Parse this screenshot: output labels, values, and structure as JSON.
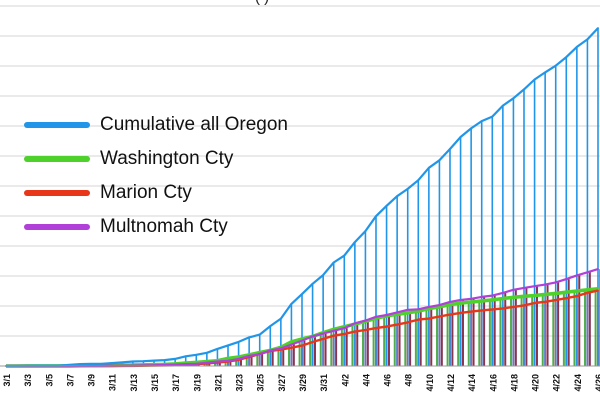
{
  "chart_data": {
    "type": "line",
    "title_fragment": "(  )",
    "x": [
      "3/1",
      "3/2",
      "3/3",
      "3/4",
      "3/5",
      "3/6",
      "3/7",
      "3/8",
      "3/9",
      "3/10",
      "3/11",
      "3/12",
      "3/13",
      "3/14",
      "3/15",
      "3/16",
      "3/17",
      "3/18",
      "3/19",
      "3/20",
      "3/21",
      "3/22",
      "3/23",
      "3/24",
      "3/25",
      "3/26",
      "3/27",
      "3/28",
      "3/29",
      "3/30",
      "3/31",
      "4/1",
      "4/2",
      "4/3",
      "4/4",
      "4/5",
      "4/6",
      "4/7",
      "4/8",
      "4/9",
      "4/10",
      "4/11",
      "4/12",
      "4/13",
      "4/14",
      "4/15",
      "4/16",
      "4/17",
      "4/18",
      "4/19",
      "4/20",
      "4/21",
      "4/22",
      "4/23",
      "4/24",
      "4/25",
      "4/26"
    ],
    "tick_labels": [
      "3/1",
      "3/3",
      "3/5",
      "3/7",
      "3/9",
      "3/11",
      "3/13",
      "3/15",
      "3/17",
      "3/19",
      "3/21",
      "3/23",
      "3/25",
      "3/27",
      "3/29",
      "3/31",
      "4/2",
      "4/4",
      "4/6",
      "4/8",
      "4/10",
      "4/12",
      "4/14",
      "4/16",
      "4/18",
      "4/20",
      "4/22",
      "4/24",
      "4/26"
    ],
    "grid": true,
    "legend_position": "upper-left",
    "series": [
      {
        "name": "Cumulative all Oregon",
        "color": "#2196e8",
        "values": [
          1,
          1,
          2,
          3,
          3,
          3,
          7,
          13,
          14,
          15,
          19,
          24,
          30,
          32,
          36,
          39,
          47,
          65,
          75,
          88,
          114,
          137,
          161,
          191,
          209,
          266,
          316,
          414,
          479,
          548,
          606,
          690,
          736,
          826,
          899,
          999,
          1068,
          1132,
          1181,
          1239,
          1321,
          1371,
          1447,
          1527,
          1584,
          1633,
          1663,
          1736,
          1785,
          1844,
          1910,
          1957,
          2002,
          2059,
          2127,
          2177,
          2253
        ]
      },
      {
        "name": "Washington Cty",
        "color": "#4fd12c",
        "values": [
          0,
          0,
          1,
          1,
          1,
          1,
          1,
          2,
          3,
          3,
          4,
          5,
          6,
          7,
          9,
          11,
          14,
          20,
          24,
          29,
          35,
          51,
          60,
          74,
          90,
          104,
          124,
          161,
          180,
          197,
          222,
          244,
          262,
          279,
          297,
          318,
          334,
          345,
          355,
          366,
          383,
          394,
          409,
          419,
          426,
          434,
          441,
          450,
          458,
          465,
          470,
          477,
          484,
          492,
          500,
          508,
          515
        ]
      },
      {
        "name": "Marion Cty",
        "color": "#e8361a",
        "values": [
          0,
          0,
          0,
          0,
          0,
          0,
          0,
          0,
          0,
          0,
          0,
          1,
          1,
          2,
          3,
          4,
          5,
          8,
          12,
          17,
          23,
          30,
          41,
          60,
          80,
          100,
          109,
          122,
          136,
          160,
          181,
          202,
          214,
          229,
          240,
          253,
          263,
          276,
          291,
          309,
          316,
          330,
          343,
          354,
          363,
          371,
          377,
          384,
          394,
          404,
          420,
          428,
          439,
          452,
          466,
          488,
          503
        ]
      },
      {
        "name": "Multnomah Cty",
        "color": "#b040d8",
        "values": [
          0,
          0,
          0,
          0,
          1,
          1,
          1,
          1,
          1,
          1,
          2,
          2,
          3,
          4,
          5,
          7,
          9,
          13,
          15,
          22,
          30,
          35,
          47,
          67,
          78,
          104,
          117,
          143,
          169,
          197,
          216,
          235,
          252,
          285,
          303,
          328,
          340,
          357,
          375,
          378,
          394,
          406,
          427,
          440,
          448,
          461,
          469,
          487,
          508,
          521,
          532,
          543,
          557,
          579,
          604,
          625,
          646
        ]
      }
    ],
    "bar_series": [
      {
        "name": "Washington Cty",
        "color": "#3fa33a"
      },
      {
        "name": "Marion Cty",
        "color": "#e83a6a"
      },
      {
        "name": "Multnomah Cty",
        "color": "#7a1e3e"
      }
    ],
    "ylim": [
      0,
      2440
    ],
    "gridline_values": [
      0,
      200,
      400,
      600,
      800,
      1000,
      1200,
      1400,
      1600,
      1800,
      2000,
      2200,
      2400
    ]
  }
}
